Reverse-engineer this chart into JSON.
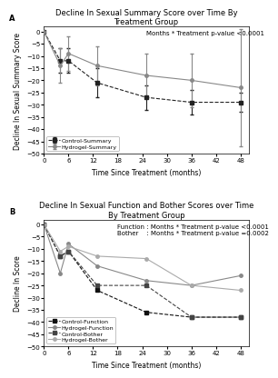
{
  "panel_A": {
    "title": "Decline In Sexual Summary Score over Time By\nTreatment Group",
    "annotation": "Months * Treatment p-value <0.0001",
    "xlabel": "Time Since Treatment (months)",
    "ylabel": "Decline In Sexual Summary Score",
    "xlim": [
      0,
      50
    ],
    "ylim": [
      -50,
      2
    ],
    "xticks": [
      0,
      6,
      12,
      18,
      24,
      30,
      36,
      42,
      48
    ],
    "yticks": [
      0,
      -5,
      -10,
      -15,
      -20,
      -25,
      -30,
      -35,
      -40,
      -45,
      -50
    ],
    "control_summary": {
      "x": [
        0,
        4,
        6,
        13,
        25,
        36,
        48
      ],
      "y": [
        0,
        -12,
        -12,
        -21,
        -27,
        -29,
        -29
      ],
      "yerr_low": [
        0,
        5,
        5,
        6,
        5,
        5,
        4
      ],
      "yerr_high": [
        0,
        5,
        5,
        6,
        5,
        5,
        4
      ],
      "color": "#222222",
      "linestyle": "dashed",
      "marker": "s",
      "label": "Control-Summary"
    },
    "hydrogel_summary": {
      "x": [
        0,
        4,
        6,
        13,
        25,
        36,
        48
      ],
      "y": [
        0,
        -14,
        -9,
        -14,
        -18,
        -20,
        -23
      ],
      "yerr_low": [
        0,
        7,
        7,
        8,
        9,
        11,
        24
      ],
      "yerr_high": [
        0,
        7,
        7,
        8,
        9,
        11,
        24
      ],
      "color": "#888888",
      "linestyle": "solid",
      "marker": "o",
      "label": "Hydrogel-Summary"
    }
  },
  "panel_B": {
    "title": "Decline In Sexual Function and Bother Scores over Time\nBy Treatment Group",
    "annotation_line1": "Function : Months * Treatment p-value <0.0001",
    "annotation_line2": "Bother    : Months * Treatment p-value =0.0002",
    "xlabel": "Time Since Treatment (months)",
    "ylabel": "Decline In Score",
    "xlim": [
      0,
      50
    ],
    "ylim": [
      -50,
      2
    ],
    "xticks": [
      0,
      6,
      12,
      18,
      24,
      30,
      36,
      42,
      48
    ],
    "yticks": [
      0,
      -5,
      -10,
      -15,
      -20,
      -25,
      -30,
      -35,
      -40,
      -45,
      -50
    ],
    "control_function": {
      "x": [
        0,
        4,
        6,
        13,
        25,
        36,
        48
      ],
      "y": [
        0,
        -13,
        -11,
        -27,
        -36,
        -38,
        -38
      ],
      "color": "#111111",
      "linestyle": "dashed",
      "marker": "s",
      "label": "Control-Function"
    },
    "hydrogel_function": {
      "x": [
        0,
        4,
        6,
        13,
        25,
        36,
        48
      ],
      "y": [
        0,
        -20,
        -8,
        -17,
        -23,
        -25,
        -21
      ],
      "color": "#888888",
      "linestyle": "solid",
      "marker": "o",
      "label": "Hydrogel-Function"
    },
    "control_bother": {
      "x": [
        0,
        4,
        6,
        13,
        25,
        36,
        48
      ],
      "y": [
        0,
        -13,
        -11,
        -25,
        -25,
        -38,
        -38
      ],
      "color": "#444444",
      "linestyle": "dashed",
      "marker": "s",
      "label": "Control-Bother"
    },
    "hydrogel_bother": {
      "x": [
        0,
        4,
        6,
        13,
        25,
        36,
        48
      ],
      "y": [
        0,
        -11,
        -9,
        -13,
        -14,
        -25,
        -27
      ],
      "color": "#aaaaaa",
      "linestyle": "solid",
      "marker": "o",
      "label": "Hydrogel-Bother"
    }
  },
  "panel_label_fontsize": 6,
  "title_fontsize": 6.0,
  "axis_label_fontsize": 5.5,
  "tick_fontsize": 5.0,
  "legend_fontsize": 4.5,
  "annotation_fontsize": 5.0
}
